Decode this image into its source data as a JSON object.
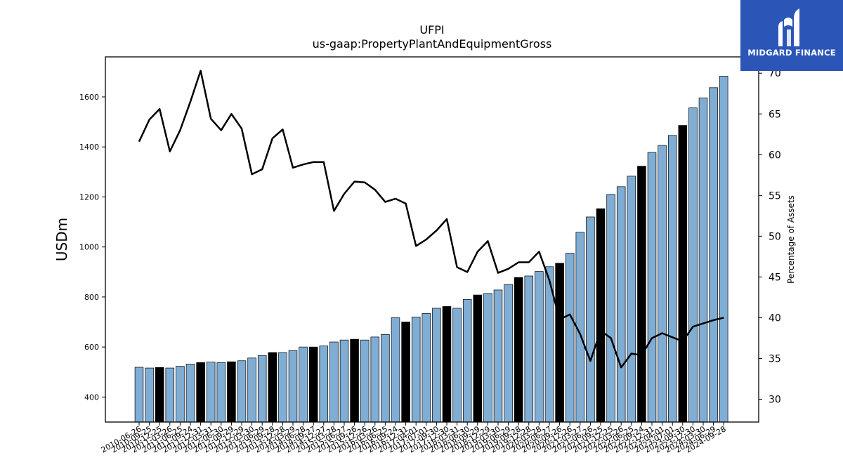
{
  "chart_data": {
    "type": "bar",
    "title": "UFPI",
    "subtitle": "us-gaap:PropertyPlantAndEquipmentGross",
    "ylabel": "USDm",
    "y2label": "Percentage of Assets",
    "ylim": [
      300,
      1760
    ],
    "y2lim": [
      27.2,
      72
    ],
    "yticks": [
      400,
      600,
      800,
      1000,
      1200,
      1400,
      1600
    ],
    "y2ticks": [
      30,
      35,
      40,
      45,
      50,
      55,
      60,
      65,
      70
    ],
    "bar_color": "#7fadd4",
    "highlight_color": "#000000",
    "line_color": "#000000",
    "categories": [
      "2010-06-26",
      "2010-09-25",
      "2010-12-25",
      "2011-03-26",
      "2011-06-25",
      "2011-09-24",
      "2011-12-31",
      "2012-03-31",
      "2012-06-30",
      "2012-09-29",
      "2012-12-29",
      "2013-03-30",
      "2013-06-29",
      "2013-09-28",
      "2013-12-28",
      "2014-03-29",
      "2014-06-28",
      "2014-09-27",
      "2014-12-27",
      "2015-03-28",
      "2015-06-27",
      "2015-09-26",
      "2015-12-26",
      "2016-03-26",
      "2016-06-25",
      "2016-09-24",
      "2016-12-31",
      "2017-04-01",
      "2017-07-01",
      "2017-09-30",
      "2017-12-30",
      "2018-03-31",
      "2018-06-30",
      "2018-09-29",
      "2018-12-29",
      "2019-03-30",
      "2019-06-29",
      "2019-09-28",
      "2019-12-28",
      "2020-03-28",
      "2020-06-27",
      "2020-09-26",
      "2020-12-26",
      "2021-03-27",
      "2021-06-26",
      "2021-09-25",
      "2021-12-25",
      "2022-03-26",
      "2022-06-25",
      "2022-09-24",
      "2022-12-31",
      "2023-04-01",
      "2023-07-01",
      "2023-09-30",
      "2023-12-30",
      "2024-03-30",
      "2024-06-29",
      "2024-09-28"
    ],
    "visible_tick_labels": [
      "2010-06-26",
      "2010-09-25",
      "2010-12-25",
      "2011-03-26",
      "2011-06-25",
      "2011-09-24",
      "2011-12-31",
      "2012-03-31",
      "2012-06-30",
      "2012-09-29",
      "2012-12-29",
      "2013-03-30",
      "2013-06-29",
      "2013-09-28",
      "2013-12-28",
      "2014-03-29",
      "2014-06-28",
      "2014-09-27",
      "2014-12-27",
      "2015-03-28",
      "2015-06-27",
      "2015-09-26",
      "2015-12-26",
      "2016-03-26",
      "2016-06-25",
      "2016-09-24",
      "2016-12-31",
      "2017-04-01",
      "2017-07-01",
      "2017-09-30",
      "2017-12-30",
      "2018-03-31",
      "2018-06-30",
      "2018-09-29",
      "2018-12-29",
      "2019-03-30",
      "2019-06-29",
      "2019-09-28",
      "2019-12-28",
      "2020-03-28",
      "2020-06-27",
      "2020-09-26",
      "2020-12-26",
      "2021-03-27",
      "2021-06-26",
      "2021-09-25",
      "2021-12-25",
      "2022-03-26",
      "2022-06-25",
      "2022-09-24",
      "2022-12-31",
      "2023-04-01",
      "2023-07-01",
      "2023-09-30",
      "2023-12-30",
      "2024-03-30",
      "2024-06-29",
      "2024-09-28"
    ],
    "series": [
      {
        "axis": "left",
        "type": "bar",
        "values": [
          519,
          516,
          518,
          516,
          523,
          532,
          538,
          540,
          538,
          541,
          545,
          556,
          566,
          578,
          578,
          586,
          600,
          600,
          604,
          620,
          628,
          631,
          628,
          640,
          650,
          717,
          700,
          720,
          734,
          755,
          762,
          755,
          790,
          808,
          814,
          828,
          850,
          878,
          884,
          902,
          921,
          935,
          975,
          1059,
          1120,
          1153,
          1210,
          1241,
          1283,
          1323,
          1378,
          1406,
          1446,
          1486,
          1556,
          1596,
          1637,
          1683
        ],
        "highlight": [
          false,
          false,
          true,
          false,
          false,
          false,
          true,
          false,
          false,
          true,
          false,
          false,
          false,
          true,
          false,
          false,
          false,
          true,
          false,
          false,
          false,
          true,
          false,
          false,
          false,
          false,
          true,
          false,
          false,
          false,
          true,
          false,
          false,
          true,
          false,
          false,
          false,
          true,
          false,
          false,
          false,
          true,
          false,
          false,
          false,
          true,
          false,
          false,
          false,
          true,
          false,
          false,
          false,
          true,
          false,
          false,
          false,
          false
        ]
      },
      {
        "axis": "right",
        "type": "line",
        "values": [
          61.6,
          64.3,
          65.6,
          60.4,
          63.0,
          66.5,
          70.3,
          64.4,
          63.0,
          65.0,
          63.2,
          57.6,
          58.2,
          62.0,
          63.1,
          58.4,
          58.8,
          59.1,
          59.1,
          53.1,
          55.2,
          56.7,
          56.6,
          55.7,
          54.2,
          54.6,
          54.0,
          48.8,
          49.6,
          50.7,
          52.1,
          46.2,
          45.6,
          48.1,
          49.4,
          45.5,
          46.0,
          46.8,
          46.8,
          48.1,
          44.6,
          39.8,
          40.4,
          38.0,
          34.7,
          38.4,
          37.5,
          33.9,
          35.6,
          35.4,
          37.5,
          38.1,
          37.6,
          37.1,
          38.9,
          39.3,
          39.7,
          40.0
        ]
      }
    ]
  },
  "logo": {
    "text": "MIDGARD FINANCE",
    "color": "#2b56b8"
  }
}
